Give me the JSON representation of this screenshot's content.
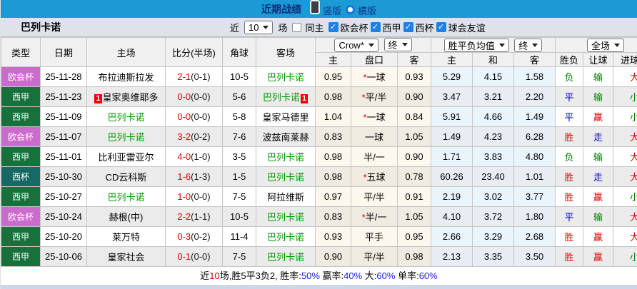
{
  "top_bar": {
    "title": "近期战绩",
    "radios": [
      {
        "label": "竖版",
        "selected": true
      },
      {
        "label": "横版",
        "selected": false
      }
    ]
  },
  "filter_bar": {
    "team": "巴列卡诺",
    "recent_prefix": "近",
    "recent_count": "10",
    "recent_suffix": "场",
    "same_home_label": "同主",
    "same_home_checked": false,
    "competitions": [
      {
        "label": "欧会杯",
        "checked": true
      },
      {
        "label": "西甲",
        "checked": true
      },
      {
        "label": "西杯",
        "checked": true
      },
      {
        "label": "球会友谊",
        "checked": true
      }
    ]
  },
  "table": {
    "selects": {
      "bookmaker": "Crow*",
      "odds_stage": "终",
      "avg_label": "胜平负均值",
      "avg_stage": "终",
      "scope": "全场"
    },
    "headers": {
      "type": "类型",
      "date": "日期",
      "home": "主场",
      "score": "比分(半场)",
      "corner": "角球",
      "away": "客场",
      "odds_home": "主",
      "odds_line": "盘口",
      "odds_away": "客",
      "avg_home": "主",
      "avg_draw": "和",
      "avg_away": "客",
      "result": "胜负",
      "handicap": "让球",
      "goals": "进球数"
    },
    "type_colors": {
      "欧会杯": "#cb6bcb",
      "西甲": "#16713a",
      "西杯": "#166a63"
    },
    "rows": [
      {
        "type": "欧会杯",
        "date": "25-11-28",
        "home": "布拉迪斯拉发",
        "home_is_team": false,
        "home_badge": "",
        "score_ft": "2-1",
        "score_ht": "(0-1)",
        "corner": "10-5",
        "away": "巴列卡诺",
        "away_is_team": true,
        "away_badge": "",
        "odds_home": "0.95",
        "line_star": true,
        "line": "一球",
        "odds_away": "0.93",
        "avg_home": "5.29",
        "avg_draw": "4.15",
        "avg_away": "1.58",
        "result": {
          "text": "负",
          "color": "green"
        },
        "handicap": {
          "text": "输",
          "color": "green"
        },
        "goals": {
          "text": "大",
          "color": "red"
        }
      },
      {
        "type": "西甲",
        "date": "25-11-23",
        "home": "皇家奥维耶多",
        "home_is_team": false,
        "home_badge": "1",
        "score_ft": "0-0",
        "score_ht": "(0-0)",
        "corner": "5-6",
        "away": "巴列卡诺",
        "away_is_team": true,
        "away_badge": "1",
        "odds_home": "0.98",
        "line_star": true,
        "line": "平/半",
        "odds_away": "0.90",
        "avg_home": "3.47",
        "avg_draw": "3.21",
        "avg_away": "2.20",
        "result": {
          "text": "平",
          "color": "blue"
        },
        "handicap": {
          "text": "输",
          "color": "green"
        },
        "goals": {
          "text": "小",
          "color": "green"
        }
      },
      {
        "type": "西甲",
        "date": "25-11-09",
        "home": "巴列卡诺",
        "home_is_team": true,
        "home_badge": "",
        "score_ft": "0-0",
        "score_ht": "(0-0)",
        "corner": "5-8",
        "away": "皇家马德里",
        "away_is_team": false,
        "away_badge": "",
        "odds_home": "1.04",
        "line_star": true,
        "line": "一球",
        "odds_away": "0.84",
        "avg_home": "5.91",
        "avg_draw": "4.66",
        "avg_away": "1.49",
        "result": {
          "text": "平",
          "color": "blue"
        },
        "handicap": {
          "text": "赢",
          "color": "red"
        },
        "goals": {
          "text": "小",
          "color": "green"
        }
      },
      {
        "type": "欧会杯",
        "date": "25-11-07",
        "home": "巴列卡诺",
        "home_is_team": true,
        "home_badge": "",
        "score_ft": "3-2",
        "score_ht": "(0-2)",
        "corner": "7-6",
        "away": "波兹南莱赫",
        "away_is_team": false,
        "away_badge": "",
        "odds_home": "0.83",
        "line_star": false,
        "line": "一球",
        "odds_away": "1.05",
        "avg_home": "1.49",
        "avg_draw": "4.23",
        "avg_away": "6.28",
        "result": {
          "text": "胜",
          "color": "red"
        },
        "handicap": {
          "text": "走",
          "color": "blue"
        },
        "goals": {
          "text": "大",
          "color": "red"
        }
      },
      {
        "type": "西甲",
        "date": "25-11-01",
        "home": "比利亚雷亚尔",
        "home_is_team": false,
        "home_badge": "",
        "score_ft": "4-0",
        "score_ht": "(1-0)",
        "corner": "3-5",
        "away": "巴列卡诺",
        "away_is_team": true,
        "away_badge": "",
        "odds_home": "0.98",
        "line_star": false,
        "line": "半/一",
        "odds_away": "0.90",
        "avg_home": "1.71",
        "avg_draw": "3.83",
        "avg_away": "4.80",
        "result": {
          "text": "负",
          "color": "green"
        },
        "handicap": {
          "text": "输",
          "color": "green"
        },
        "goals": {
          "text": "大",
          "color": "red"
        }
      },
      {
        "type": "西杯",
        "date": "25-10-30",
        "home": "CD云科斯",
        "home_is_team": false,
        "home_badge": "",
        "score_ft": "1-6",
        "score_ht": "(1-3)",
        "corner": "1-5",
        "away": "巴列卡诺",
        "away_is_team": true,
        "away_badge": "",
        "odds_home": "0.98",
        "line_star": true,
        "line": "五球",
        "odds_away": "0.78",
        "avg_home": "60.26",
        "avg_draw": "23.40",
        "avg_away": "1.01",
        "result": {
          "text": "胜",
          "color": "red"
        },
        "handicap": {
          "text": "走",
          "color": "blue"
        },
        "goals": {
          "text": "大",
          "color": "red"
        }
      },
      {
        "type": "西甲",
        "date": "25-10-27",
        "home": "巴列卡诺",
        "home_is_team": true,
        "home_badge": "",
        "score_ft": "1-0",
        "score_ht": "(0-0)",
        "corner": "7-5",
        "away": "阿拉维斯",
        "away_is_team": false,
        "away_badge": "",
        "odds_home": "0.97",
        "line_star": false,
        "line": "平/半",
        "odds_away": "0.91",
        "avg_home": "2.19",
        "avg_draw": "3.02",
        "avg_away": "3.77",
        "result": {
          "text": "胜",
          "color": "red"
        },
        "handicap": {
          "text": "赢",
          "color": "red"
        },
        "goals": {
          "text": "小",
          "color": "green"
        }
      },
      {
        "type": "欧会杯",
        "date": "25-10-24",
        "home": "赫根(中)",
        "home_is_team": false,
        "home_badge": "",
        "score_ft": "2-2",
        "score_ht": "(1-1)",
        "corner": "10-5",
        "away": "巴列卡诺",
        "away_is_team": true,
        "away_badge": "",
        "odds_home": "0.83",
        "line_star": true,
        "line": "半/一",
        "odds_away": "1.05",
        "avg_home": "4.10",
        "avg_draw": "3.72",
        "avg_away": "1.80",
        "result": {
          "text": "平",
          "color": "blue"
        },
        "handicap": {
          "text": "输",
          "color": "green"
        },
        "goals": {
          "text": "大",
          "color": "red"
        }
      },
      {
        "type": "西甲",
        "date": "25-10-20",
        "home": "莱万特",
        "home_is_team": false,
        "home_badge": "",
        "score_ft": "0-3",
        "score_ht": "(0-2)",
        "corner": "11-4",
        "away": "巴列卡诺",
        "away_is_team": true,
        "away_badge": "",
        "odds_home": "0.93",
        "line_star": false,
        "line": "平手",
        "odds_away": "0.95",
        "avg_home": "2.66",
        "avg_draw": "3.29",
        "avg_away": "2.68",
        "result": {
          "text": "胜",
          "color": "red"
        },
        "handicap": {
          "text": "赢",
          "color": "red"
        },
        "goals": {
          "text": "大",
          "color": "red"
        }
      },
      {
        "type": "西甲",
        "date": "25-10-06",
        "home": "皇家社会",
        "home_is_team": false,
        "home_badge": "",
        "score_ft": "0-1",
        "score_ht": "(0-0)",
        "corner": "7-5",
        "away": "巴列卡诺",
        "away_is_team": true,
        "away_badge": "",
        "odds_home": "0.90",
        "line_star": false,
        "line": "平/半",
        "odds_away": "0.98",
        "avg_home": "2.13",
        "avg_draw": "3.35",
        "avg_away": "3.50",
        "result": {
          "text": "胜",
          "color": "red"
        },
        "handicap": {
          "text": "赢",
          "color": "red"
        },
        "goals": {
          "text": "小",
          "color": "green"
        }
      }
    ]
  },
  "footer": {
    "segments": [
      {
        "text": "近",
        "color": "black"
      },
      {
        "text": "10",
        "color": "red"
      },
      {
        "text": "场,胜5平3负2, 胜率:",
        "color": "black"
      },
      {
        "text": "50%",
        "color": "blue"
      },
      {
        "text": " 赢率:",
        "color": "black"
      },
      {
        "text": "40%",
        "color": "blue"
      },
      {
        "text": " 大:",
        "color": "black"
      },
      {
        "text": "60%",
        "color": "blue"
      },
      {
        "text": " 单率:",
        "color": "black"
      },
      {
        "text": "60%",
        "color": "blue"
      }
    ]
  },
  "colors": {
    "top_bar_bg": "#1b9ad6",
    "team_text_green": "#009900",
    "score_red": "#e10000",
    "result_red": "#e10000",
    "result_green": "#008000",
    "result_blue": "#0000cd",
    "type_purple": "#cb6bcb",
    "type_green": "#16713a",
    "type_teal": "#166a63"
  }
}
